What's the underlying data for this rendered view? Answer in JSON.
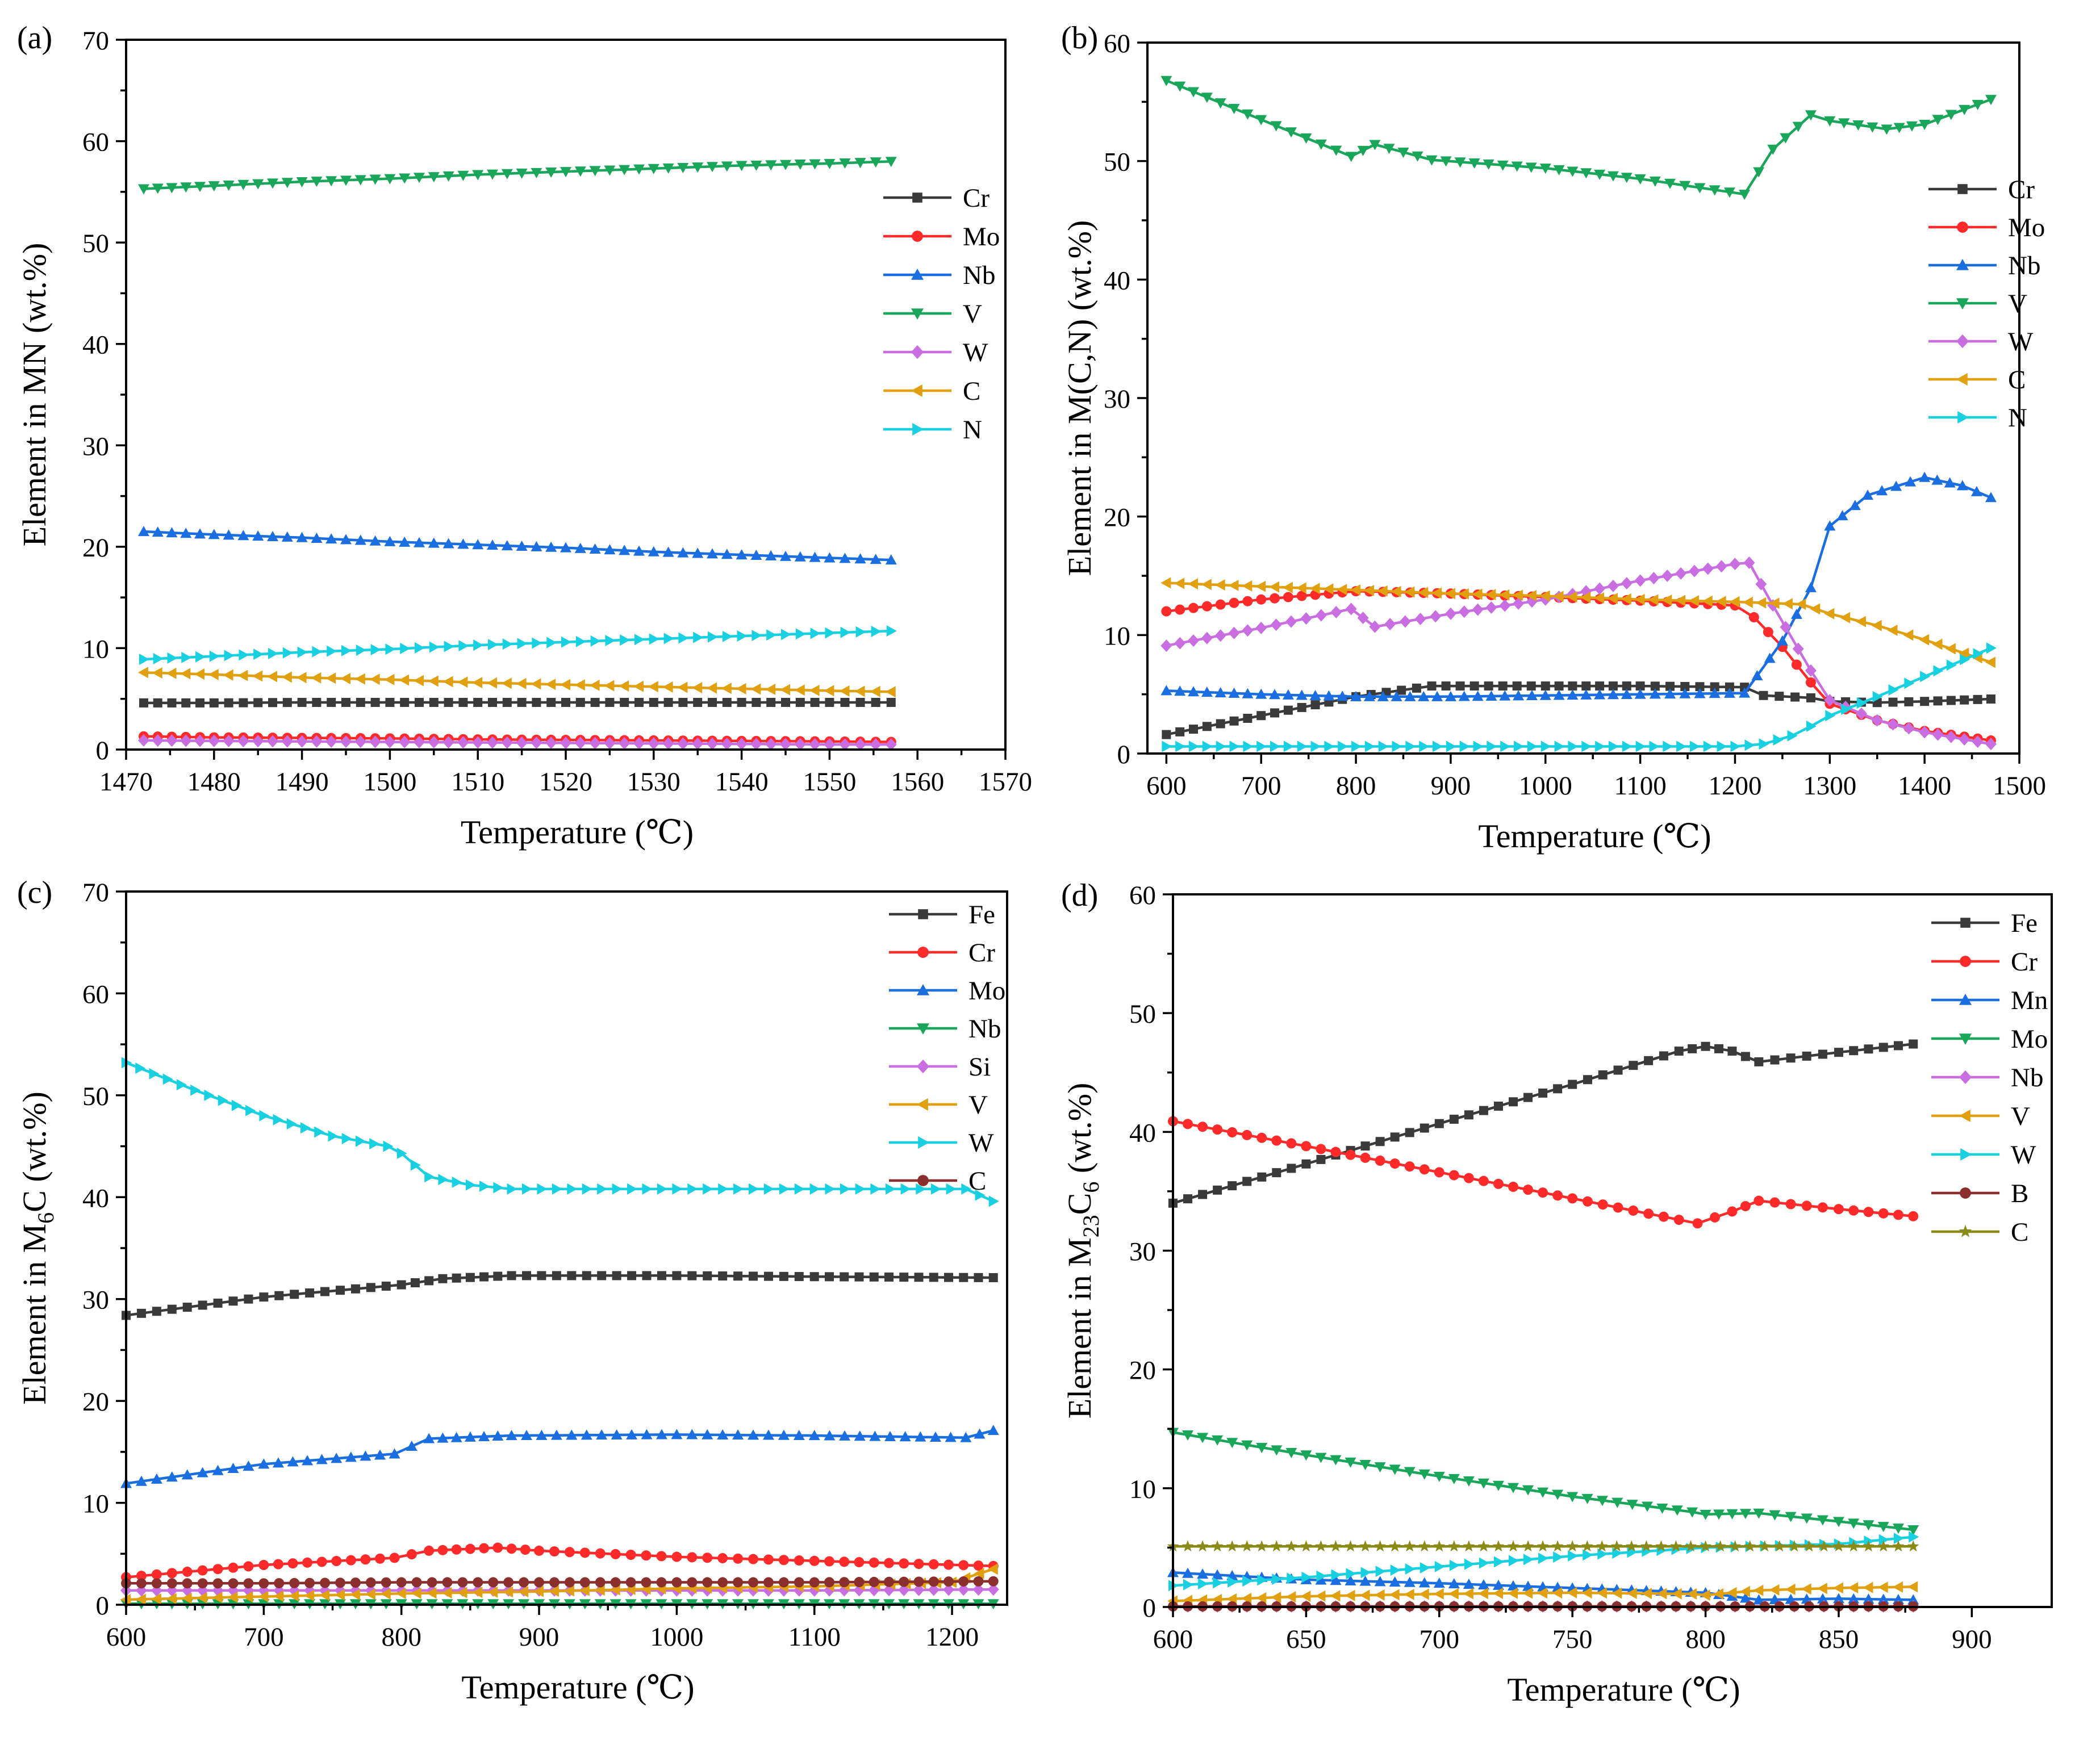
{
  "chart_data": [
    {
      "type": "line",
      "panel": "(a)",
      "xlabel": "Temperature (℃)",
      "ylabel": "Element in MN (wt.%)",
      "xlim": [
        1470,
        1570
      ],
      "ylim": [
        0,
        70
      ],
      "xticks": [
        1470,
        1480,
        1490,
        1500,
        1510,
        1520,
        1530,
        1540,
        1550,
        1560,
        1570
      ],
      "yticks": [
        0,
        10,
        20,
        30,
        40,
        50,
        60,
        70
      ],
      "legend_position": "right",
      "series": [
        {
          "name": "Cr",
          "color": "#3a3a3a",
          "marker": "square",
          "x": [
            1472,
            1480,
            1490,
            1500,
            1510,
            1520,
            1530,
            1540,
            1550,
            1557
          ],
          "y": [
            4.6,
            4.6,
            4.65,
            4.65,
            4.65,
            4.65,
            4.65,
            4.65,
            4.65,
            4.65
          ]
        },
        {
          "name": "Mo",
          "color": "#ff2a2a",
          "marker": "circle",
          "x": [
            1472,
            1480,
            1490,
            1500,
            1510,
            1520,
            1530,
            1540,
            1550,
            1557
          ],
          "y": [
            1.3,
            1.2,
            1.15,
            1.1,
            1.0,
            0.95,
            0.9,
            0.85,
            0.8,
            0.75
          ]
        },
        {
          "name": "Nb",
          "color": "#1a6ee0",
          "marker": "triangle-up",
          "x": [
            1472,
            1480,
            1490,
            1500,
            1510,
            1520,
            1530,
            1540,
            1550,
            1557
          ],
          "y": [
            21.5,
            21.2,
            20.9,
            20.5,
            20.2,
            19.9,
            19.5,
            19.2,
            18.9,
            18.7
          ]
        },
        {
          "name": "V",
          "color": "#1aa65a",
          "marker": "triangle-down",
          "x": [
            1472,
            1480,
            1490,
            1500,
            1510,
            1520,
            1530,
            1540,
            1550,
            1557
          ],
          "y": [
            55.3,
            55.6,
            56.0,
            56.3,
            56.7,
            57.0,
            57.3,
            57.6,
            57.8,
            58.0
          ]
        },
        {
          "name": "W",
          "color": "#c86ee0",
          "marker": "diamond",
          "x": [
            1472,
            1480,
            1490,
            1500,
            1510,
            1520,
            1530,
            1540,
            1550,
            1557
          ],
          "y": [
            0.9,
            0.85,
            0.8,
            0.75,
            0.7,
            0.65,
            0.6,
            0.55,
            0.5,
            0.5
          ]
        },
        {
          "name": "C",
          "color": "#e0a010",
          "marker": "triangle-left",
          "x": [
            1472,
            1480,
            1490,
            1500,
            1510,
            1520,
            1530,
            1540,
            1550,
            1557
          ],
          "y": [
            7.6,
            7.4,
            7.1,
            6.9,
            6.6,
            6.4,
            6.2,
            6.0,
            5.8,
            5.7
          ]
        },
        {
          "name": "N",
          "color": "#18d0e0",
          "marker": "triangle-right",
          "x": [
            1472,
            1480,
            1490,
            1500,
            1510,
            1520,
            1530,
            1540,
            1550,
            1557
          ],
          "y": [
            8.9,
            9.2,
            9.6,
            9.9,
            10.3,
            10.6,
            10.9,
            11.2,
            11.5,
            11.7
          ]
        }
      ]
    },
    {
      "type": "line",
      "panel": "(b)",
      "xlabel": "Temperature (℃)",
      "ylabel": "Element in M(C,N) (wt.%)",
      "xlim": [
        580,
        1500
      ],
      "ylim": [
        0,
        60
      ],
      "xticks": [
        600,
        700,
        800,
        900,
        1000,
        1100,
        1200,
        1300,
        1400,
        1500
      ],
      "yticks": [
        0,
        10,
        20,
        30,
        40,
        50,
        60
      ],
      "legend_position": "right",
      "series": [
        {
          "name": "Cr",
          "color": "#3a3a3a",
          "marker": "square",
          "x": [
            600,
            700,
            800,
            880,
            1000,
            1100,
            1210,
            1230,
            1280,
            1300,
            1350,
            1400,
            1470
          ],
          "y": [
            1.6,
            3.2,
            4.8,
            5.7,
            5.7,
            5.7,
            5.6,
            4.9,
            4.7,
            4.4,
            4.3,
            4.4,
            4.6
          ]
        },
        {
          "name": "Mo",
          "color": "#ff2a2a",
          "marker": "circle",
          "x": [
            600,
            700,
            800,
            900,
            1000,
            1100,
            1200,
            1220,
            1250,
            1280,
            1300,
            1350,
            1400,
            1470
          ],
          "y": [
            12.0,
            13.0,
            13.7,
            13.5,
            13.2,
            12.9,
            12.5,
            11.5,
            9.0,
            6.0,
            4.2,
            2.8,
            1.9,
            1.1
          ]
        },
        {
          "name": "Nb",
          "color": "#1a6ee0",
          "marker": "triangle-up",
          "x": [
            600,
            700,
            800,
            900,
            1000,
            1100,
            1210,
            1250,
            1280,
            1300,
            1340,
            1400,
            1440,
            1470
          ],
          "y": [
            5.3,
            5.0,
            4.8,
            4.8,
            4.9,
            5.0,
            5.1,
            9.5,
            14.0,
            19.2,
            21.8,
            23.3,
            22.6,
            21.6
          ]
        },
        {
          "name": "V",
          "color": "#1aa65a",
          "marker": "triangle-down",
          "x": [
            600,
            700,
            795,
            820,
            880,
            1000,
            1100,
            1210,
            1240,
            1280,
            1300,
            1360,
            1400,
            1470
          ],
          "y": [
            56.8,
            53.5,
            50.4,
            51.4,
            50.1,
            49.4,
            48.5,
            47.2,
            51.0,
            53.9,
            53.4,
            52.7,
            53.1,
            55.2
          ]
        },
        {
          "name": "W",
          "color": "#c86ee0",
          "marker": "diamond",
          "x": [
            600,
            700,
            795,
            820,
            900,
            1000,
            1100,
            1200,
            1215,
            1240,
            1280,
            1300,
            1350,
            1400,
            1470
          ],
          "y": [
            9.1,
            10.6,
            12.2,
            10.7,
            11.8,
            13.0,
            14.6,
            16.0,
            16.1,
            12.5,
            7.0,
            4.5,
            2.8,
            1.8,
            0.8
          ]
        },
        {
          "name": "C",
          "color": "#e0a010",
          "marker": "triangle-left",
          "x": [
            600,
            700,
            800,
            900,
            1000,
            1100,
            1200,
            1270,
            1300,
            1350,
            1400,
            1470
          ],
          "y": [
            14.4,
            14.1,
            13.8,
            13.5,
            13.3,
            13.0,
            12.8,
            12.6,
            11.8,
            10.8,
            9.6,
            7.7
          ]
        },
        {
          "name": "N",
          "color": "#18d0e0",
          "marker": "triangle-right",
          "x": [
            600,
            700,
            800,
            900,
            1000,
            1100,
            1200,
            1230,
            1260,
            1280,
            1300,
            1350,
            1400,
            1470
          ],
          "y": [
            0.6,
            0.6,
            0.6,
            0.6,
            0.6,
            0.6,
            0.6,
            0.8,
            1.5,
            2.3,
            3.2,
            4.8,
            6.5,
            8.9
          ]
        }
      ]
    },
    {
      "type": "line",
      "panel": "(c)",
      "xlabel": "Temperature (℃)",
      "ylabel": "Element in M",
      "ylabel_sub": "6",
      "ylabel_tail": "C (wt.%)",
      "xlim": [
        600,
        1240
      ],
      "ylim": [
        0,
        70
      ],
      "xticks": [
        600,
        700,
        800,
        900,
        1000,
        1100,
        1200
      ],
      "yticks": [
        0,
        10,
        20,
        30,
        40,
        50,
        60,
        70
      ],
      "legend_position": "top-right",
      "series": [
        {
          "name": "Fe",
          "color": "#3a3a3a",
          "marker": "square",
          "x": [
            600,
            700,
            800,
            830,
            880,
            1000,
            1100,
            1230
          ],
          "y": [
            28.4,
            30.2,
            31.4,
            32.0,
            32.3,
            32.3,
            32.2,
            32.1
          ]
        },
        {
          "name": "Cr",
          "color": "#ff2a2a",
          "marker": "circle",
          "x": [
            600,
            700,
            795,
            820,
            870,
            900,
            1000,
            1100,
            1230
          ],
          "y": [
            2.7,
            3.9,
            4.6,
            5.3,
            5.6,
            5.3,
            4.7,
            4.3,
            3.8
          ]
        },
        {
          "name": "Mo",
          "color": "#1a6ee0",
          "marker": "triangle-up",
          "x": [
            600,
            700,
            795,
            820,
            880,
            1000,
            1100,
            1210,
            1230
          ],
          "y": [
            11.9,
            13.8,
            14.8,
            16.3,
            16.6,
            16.7,
            16.6,
            16.4,
            17.1
          ]
        },
        {
          "name": "Nb",
          "color": "#1aa65a",
          "marker": "triangle-down",
          "x": [
            600,
            700,
            800,
            900,
            1000,
            1100,
            1230
          ],
          "y": [
            0.1,
            0.1,
            0.1,
            0.1,
            0.1,
            0.1,
            0.1
          ]
        },
        {
          "name": "Si",
          "color": "#c86ee0",
          "marker": "diamond",
          "x": [
            600,
            700,
            800,
            900,
            1000,
            1100,
            1230
          ],
          "y": [
            1.4,
            1.4,
            1.4,
            1.4,
            1.4,
            1.4,
            1.5
          ]
        },
        {
          "name": "V",
          "color": "#e0a010",
          "marker": "triangle-left",
          "x": [
            600,
            700,
            800,
            900,
            1000,
            1100,
            1200,
            1230
          ],
          "y": [
            0.5,
            0.8,
            1.1,
            1.3,
            1.6,
            1.8,
            2.2,
            3.5
          ]
        },
        {
          "name": "W",
          "color": "#18d0e0",
          "marker": "triangle-right",
          "x": [
            600,
            650,
            700,
            750,
            790,
            800,
            820,
            850,
            880,
            1000,
            1100,
            1210,
            1230
          ],
          "y": [
            53.2,
            50.5,
            48.0,
            46.0,
            45.0,
            44.3,
            42.0,
            41.2,
            40.8,
            40.8,
            40.8,
            40.8,
            39.6
          ]
        },
        {
          "name": "C",
          "color": "#8b2e2e",
          "marker": "circle",
          "x": [
            600,
            700,
            800,
            900,
            1000,
            1100,
            1230
          ],
          "y": [
            2.1,
            2.1,
            2.2,
            2.2,
            2.2,
            2.2,
            2.3
          ]
        }
      ]
    },
    {
      "type": "line",
      "panel": "(d)",
      "xlabel": "Temperature (℃)",
      "ylabel": "Element in M",
      "ylabel_sub": "23",
      "ylabel_tail": "C",
      "ylabel_sub2": "6",
      "ylabel_tail2": " (wt.%)",
      "xlim": [
        600,
        930
      ],
      "ylim": [
        0,
        60
      ],
      "xticks": [
        600,
        650,
        700,
        750,
        800,
        850,
        900
      ],
      "yticks": [
        0,
        10,
        20,
        30,
        40,
        50,
        60
      ],
      "legend_position": "top-right",
      "series": [
        {
          "name": "Fe",
          "color": "#3a3a3a",
          "marker": "square",
          "x": [
            600,
            650,
            700,
            750,
            790,
            800,
            810,
            820,
            850,
            878
          ],
          "y": [
            34.0,
            37.3,
            40.7,
            44.0,
            46.8,
            47.2,
            46.8,
            45.9,
            46.7,
            47.4
          ]
        },
        {
          "name": "Cr",
          "color": "#ff2a2a",
          "marker": "circle",
          "x": [
            600,
            650,
            700,
            750,
            790,
            797,
            810,
            820,
            850,
            878
          ],
          "y": [
            40.9,
            38.8,
            36.6,
            34.4,
            32.6,
            32.3,
            33.3,
            34.2,
            33.5,
            32.9
          ]
        },
        {
          "name": "Mn",
          "color": "#1a6ee0",
          "marker": "triangle-up",
          "x": [
            600,
            650,
            700,
            750,
            800,
            820,
            850,
            878
          ],
          "y": [
            2.9,
            2.3,
            2.0,
            1.6,
            1.2,
            0.6,
            0.7,
            0.6
          ]
        },
        {
          "name": "Mo",
          "color": "#1aa65a",
          "marker": "triangle-down",
          "x": [
            600,
            650,
            700,
            750,
            795,
            800,
            820,
            850,
            878
          ],
          "y": [
            14.7,
            12.8,
            11.0,
            9.3,
            8.0,
            7.8,
            7.9,
            7.2,
            6.5
          ]
        },
        {
          "name": "Nb",
          "color": "#c86ee0",
          "marker": "diamond",
          "x": [
            600,
            650,
            700,
            750,
            800,
            850,
            878
          ],
          "y": [
            0.05,
            0.05,
            0.05,
            0.05,
            0.05,
            0.05,
            0.05
          ]
        },
        {
          "name": "V",
          "color": "#e0a010",
          "marker": "triangle-left",
          "x": [
            600,
            650,
            700,
            750,
            795,
            800,
            820,
            850,
            878
          ],
          "y": [
            0.5,
            0.9,
            1.1,
            1.2,
            1.1,
            1.0,
            1.4,
            1.6,
            1.7
          ]
        },
        {
          "name": "W",
          "color": "#18d0e0",
          "marker": "triangle-right",
          "x": [
            600,
            650,
            700,
            750,
            800,
            850,
            878
          ],
          "y": [
            1.8,
            2.5,
            3.4,
            4.3,
            5.0,
            5.3,
            5.9
          ]
        },
        {
          "name": "B",
          "color": "#8b2e2e",
          "marker": "circle",
          "x": [
            600,
            650,
            700,
            750,
            800,
            850,
            878
          ],
          "y": [
            0.05,
            0.05,
            0.05,
            0.05,
            0.05,
            0.05,
            0.05
          ]
        },
        {
          "name": "C",
          "color": "#8a8a18",
          "marker": "star",
          "x": [
            600,
            650,
            700,
            750,
            800,
            850,
            878
          ],
          "y": [
            5.1,
            5.1,
            5.1,
            5.1,
            5.1,
            5.1,
            5.1
          ]
        }
      ]
    }
  ]
}
